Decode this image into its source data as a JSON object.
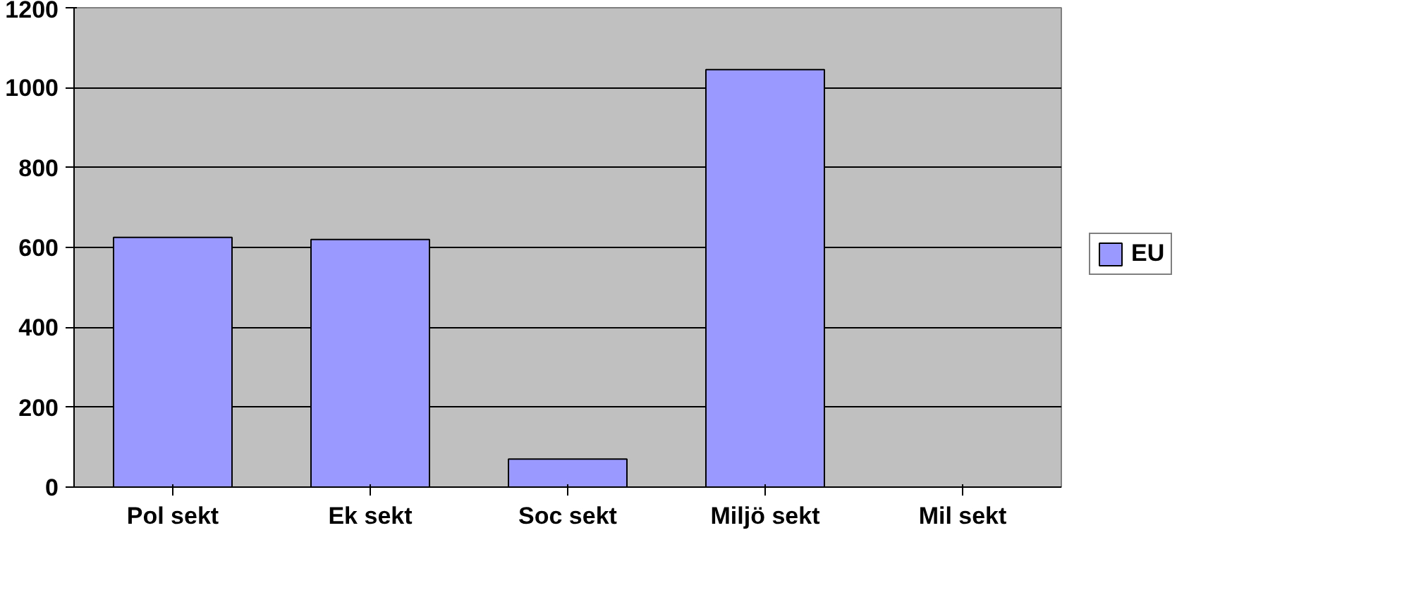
{
  "chart_data": {
    "type": "bar",
    "categories": [
      "Pol sekt",
      "Ek sekt",
      "Soc sekt",
      "Miljö sekt",
      "Mil sekt"
    ],
    "series": [
      {
        "name": "EU",
        "color": "#9999ff",
        "values": [
          625,
          620,
          70,
          1045,
          0
        ]
      }
    ],
    "ylim": [
      0,
      1200
    ],
    "yticks": [
      0,
      200,
      400,
      600,
      800,
      1000,
      1200
    ],
    "grid": "y",
    "legend": "right"
  }
}
